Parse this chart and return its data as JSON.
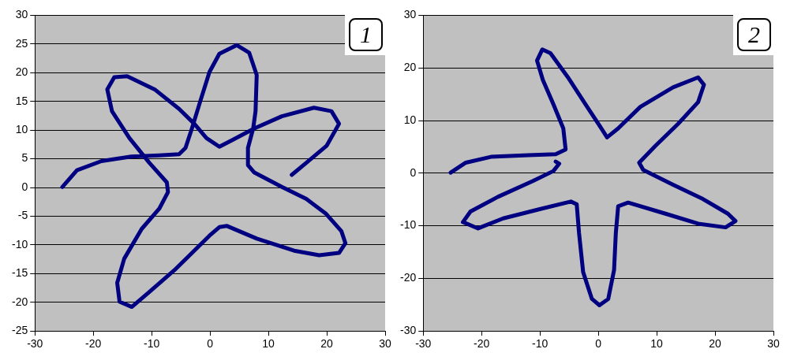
{
  "chart_data": [
    {
      "type": "line",
      "xlim": [
        -30,
        30
      ],
      "xticks": [
        -30,
        -20,
        -10,
        0,
        10,
        20,
        30
      ],
      "ylim": [
        -25,
        30
      ],
      "yticks": [
        -25,
        -20,
        -15,
        -10,
        -5,
        0,
        5,
        10,
        15,
        20,
        25,
        30
      ],
      "grid": "y",
      "marker": "none",
      "annotations": [
        "1"
      ],
      "series": [
        {
          "color": "#000080",
          "x": [
            -25.3,
            -22.8,
            -18.6,
            -13.5,
            -8.7,
            -5.3,
            -4.2,
            -3.1,
            -1.8,
            -0.1,
            1.6,
            4.6,
            6.7,
            8.0,
            7.8,
            7.4,
            6.5,
            6.5,
            7.6,
            12.3,
            16.5,
            19.9,
            22.5,
            23.2,
            22.1,
            18.7,
            14.4,
            8.0,
            2.9,
            1.6,
            -0.1,
            -2.7,
            -6.1,
            -10.4,
            -13.4,
            -15.5,
            -15.9,
            -14.7,
            -11.7,
            -8.7,
            -7.2,
            -7.4,
            -10.4,
            -13.8,
            -16.8,
            -17.6,
            -16.4,
            -14.2,
            -9.5,
            -5.3,
            -2.7,
            -0.6,
            1.6,
            3.7,
            7.6,
            12.3,
            17.8,
            20.8,
            22.1,
            20.0,
            16.5,
            14.0
          ],
          "values": [
            0.1,
            3.0,
            4.6,
            5.4,
            5.6,
            5.8,
            6.9,
            10.3,
            14.6,
            20.1,
            23.3,
            24.8,
            23.5,
            19.6,
            13.3,
            10.3,
            6.9,
            3.9,
            2.6,
            0.1,
            -2.0,
            -4.6,
            -7.6,
            -9.7,
            -11.4,
            -11.8,
            -11.0,
            -8.9,
            -6.7,
            -6.9,
            -8.4,
            -11.0,
            -14.4,
            -18.2,
            -20.8,
            -19.9,
            -16.6,
            -12.4,
            -7.2,
            -3.7,
            -0.8,
            0.9,
            4.3,
            8.6,
            13.3,
            17.1,
            19.2,
            19.4,
            17.1,
            13.7,
            11.1,
            8.6,
            7.1,
            8.2,
            10.3,
            12.4,
            13.9,
            13.3,
            11.1,
            7.3,
            4.3,
            2.2
          ]
        }
      ]
    },
    {
      "type": "line",
      "xlim": [
        -30,
        30
      ],
      "xticks": [
        -30,
        -20,
        -10,
        0,
        10,
        20,
        30
      ],
      "ylim": [
        -30,
        30
      ],
      "yticks": [
        -30,
        -20,
        -10,
        0,
        10,
        20,
        30
      ],
      "grid": "y",
      "marker": "none",
      "annotations": [
        "2"
      ],
      "series": [
        {
          "color": "#000080",
          "x": [
            -25.3,
            -22.7,
            -18.4,
            -12.0,
            -7.3,
            -5.6,
            -6.0,
            -7.7,
            -9.5,
            -10.5,
            -9.6,
            -8.2,
            -5.2,
            -2.2,
            0,
            1.5,
            3.4,
            7.2,
            12.8,
            17.1,
            18.1,
            17.1,
            13.7,
            9.8,
            7.0,
            7.7,
            12.8,
            17.9,
            22.2,
            23.5,
            21.8,
            17.1,
            11.5,
            5.1,
            3.4,
            3.0,
            2.7,
            1.7,
            0.2,
            -1.1,
            -2.6,
            -3.3,
            -3.7,
            -4.7,
            -9.9,
            -16.3,
            -20.6,
            -23.2,
            -21.9,
            -17.2,
            -11.2,
            -7.7,
            -6.7,
            -7.3
          ],
          "values": [
            0.1,
            2.0,
            3.1,
            3.4,
            3.6,
            4.5,
            8.5,
            13.1,
            17.7,
            21.4,
            23.5,
            22.8,
            18.2,
            13.1,
            9.4,
            6.8,
            8.5,
            12.6,
            16.3,
            18.2,
            16.8,
            13.5,
            9.4,
            5.2,
            2.0,
            0.6,
            -2.2,
            -4.9,
            -7.7,
            -9.1,
            -10.3,
            -9.6,
            -7.7,
            -5.6,
            -6.3,
            -11.4,
            -18.4,
            -23.9,
            -25.1,
            -23.9,
            -18.8,
            -11.4,
            -5.9,
            -5.4,
            -6.8,
            -8.6,
            -10.5,
            -9.3,
            -7.3,
            -4.5,
            -1.5,
            0.4,
            1.8,
            2.2
          ]
        }
      ]
    }
  ]
}
